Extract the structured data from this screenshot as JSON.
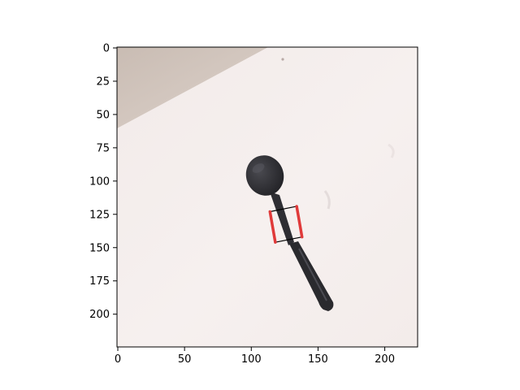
{
  "chart_data": {
    "type": "image",
    "xlim": [
      0,
      224
    ],
    "ylim": [
      224,
      0
    ],
    "x_ticks": [
      0,
      50,
      100,
      150,
      200
    ],
    "y_ticks": [
      0,
      25,
      50,
      75,
      100,
      125,
      150,
      175,
      200
    ],
    "x_tick_labels": [
      "0",
      "50",
      "100",
      "150",
      "200"
    ],
    "y_tick_labels": [
      "0",
      "25",
      "50",
      "75",
      "100",
      "125",
      "150",
      "175",
      "200"
    ],
    "title": "",
    "xlabel": "",
    "ylabel": "",
    "image_content": {
      "object": "spoon",
      "background": "white surface with grey corner at top-left"
    },
    "grasp_rectangle": {
      "corners": [
        [
          114,
          123
        ],
        [
          134,
          119
        ],
        [
          138,
          142
        ],
        [
          118,
          146
        ]
      ],
      "jaw_color": "#e03a3a",
      "edge_color": "#000000"
    }
  }
}
